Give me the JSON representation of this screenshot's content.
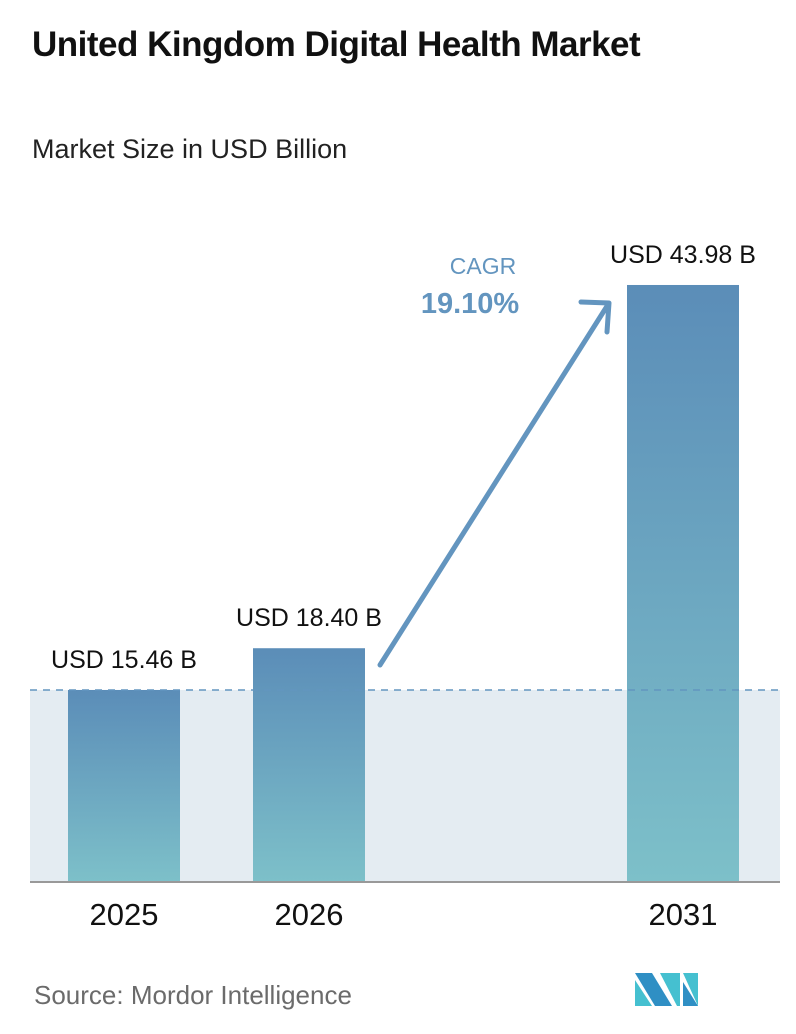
{
  "title": "United Kingdom Digital Health Market",
  "subtitle": "Market Size in USD Billion",
  "source": "Source:  Mordor Intelligence",
  "logo_text": "Mordor Intelligence logo",
  "colors": {
    "bar_top": "#5b8db8",
    "bar_bottom": "#7dc0c9",
    "band": "#e4ecf2",
    "accent": "#6395bf"
  },
  "chart_data": {
    "type": "bar",
    "categories": [
      "2025",
      "2026",
      "2031"
    ],
    "values": [
      15.46,
      18.4,
      43.98
    ],
    "labels": [
      "USD 15.46 B",
      "USD 18.40 B",
      "USD 43.98 B"
    ],
    "unit": "USD Billion",
    "cagr_label": "CAGR",
    "cagr_value": "19.10%"
  }
}
